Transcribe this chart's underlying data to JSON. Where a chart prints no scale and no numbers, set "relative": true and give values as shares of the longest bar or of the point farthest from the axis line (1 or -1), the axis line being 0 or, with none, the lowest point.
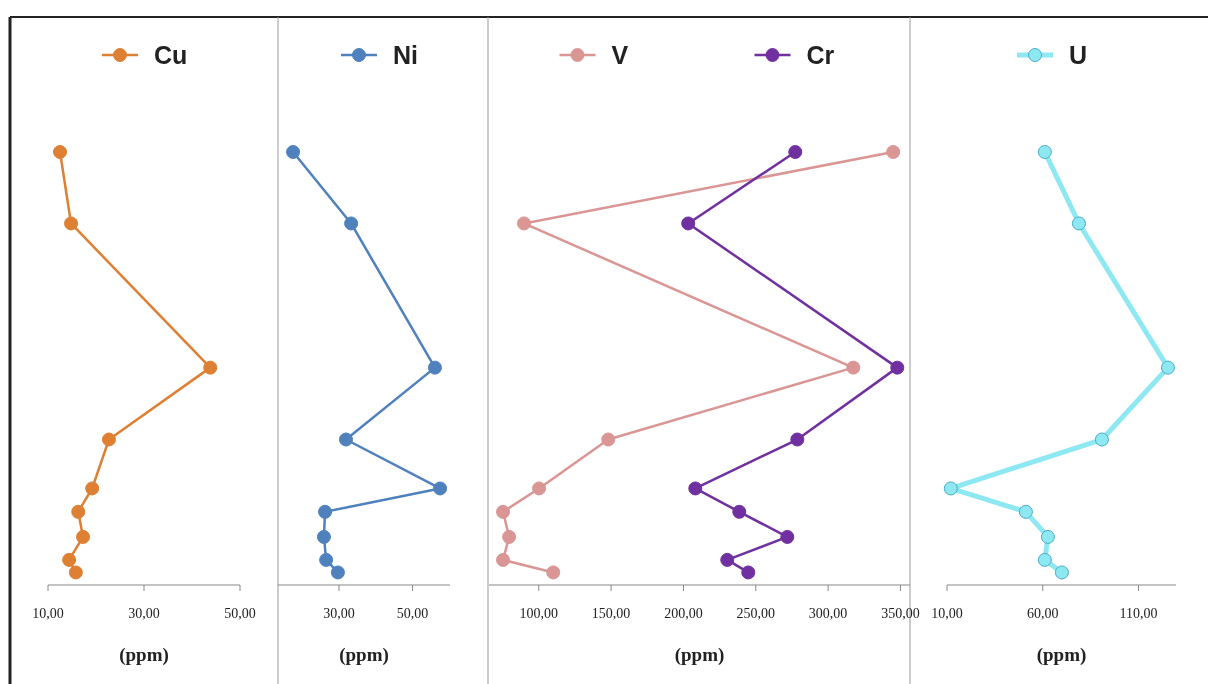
{
  "chart_data": [
    {
      "type": "line",
      "relative": true,
      "xlabel": "(ppm)",
      "xlim": [
        10,
        50
      ],
      "xticks": [
        {
          "value": 10,
          "label": "10,00"
        },
        {
          "value": 30,
          "label": "30,00"
        },
        {
          "value": 50,
          "label": "50,00"
        }
      ],
      "tick_labels": "x",
      "legend": "top",
      "marker": "circle",
      "series": [
        {
          "name": "Cu",
          "color": "#dd8033",
          "x": [
            12.5,
            14.8,
            43.8,
            22.7,
            19.2,
            16.3,
            17.3,
            14.4,
            15.8
          ],
          "values": [
            1,
            0.835,
            0.502,
            0.336,
            0.223,
            0.169,
            0.111,
            0.058,
            0.029
          ]
        }
      ]
    },
    {
      "type": "line",
      "relative": true,
      "xlabel": "(ppm)",
      "xlim": [
        13.4,
        60.2
      ],
      "xticks": [
        {
          "value": 30,
          "label": "30,00"
        },
        {
          "value": 50,
          "label": "50,00"
        }
      ],
      "tick_labels": "x",
      "legend": "top",
      "marker": "circle",
      "series": [
        {
          "name": "Ni",
          "color": "#4f81bd",
          "x": [
            17.5,
            33.3,
            56.1,
            31.9,
            57.5,
            26.2,
            25.9,
            26.5,
            29.7
          ],
          "values": [
            1,
            0.835,
            0.502,
            0.336,
            0.223,
            0.169,
            0.111,
            0.058,
            0.029
          ]
        }
      ]
    },
    {
      "type": "line",
      "relative": true,
      "xlabel": "(ppm)",
      "xlim": [
        65.6,
        356.6
      ],
      "xticks": [
        {
          "value": 100,
          "label": "100,00"
        },
        {
          "value": 150,
          "label": "150,00"
        },
        {
          "value": 200,
          "label": "200,00"
        },
        {
          "value": 250,
          "label": "250,00"
        },
        {
          "value": 300,
          "label": "300,00"
        },
        {
          "value": 350,
          "label": "350,00"
        }
      ],
      "tick_labels": "x",
      "legend": "top",
      "marker": "circle",
      "series": [
        {
          "name": "V",
          "color": "#d99694",
          "x": [
            345,
            89.8,
            317.4,
            148,
            100.2,
            75.3,
            79.5,
            75.3,
            110
          ],
          "values": [
            1,
            0.835,
            0.502,
            0.336,
            0.223,
            0.169,
            0.111,
            0.058,
            0.029
          ]
        },
        {
          "name": "Cr",
          "color": "#7030a0",
          "x": [
            277.3,
            203.3,
            347.8,
            278.7,
            208.2,
            238.6,
            271.8,
            230.3,
            244.8
          ],
          "values": [
            1,
            0.835,
            0.502,
            0.336,
            0.223,
            0.169,
            0.111,
            0.058,
            0.029
          ]
        }
      ]
    },
    {
      "type": "line",
      "relative": true,
      "xlabel": "(ppm)",
      "xlim": [
        10,
        129.6
      ],
      "xticks": [
        {
          "value": 10,
          "label": "10,00"
        },
        {
          "value": 60,
          "label": "60,00"
        },
        {
          "value": 110,
          "label": "110,00"
        }
      ],
      "tick_labels": "x",
      "legend": "top",
      "marker": "circle",
      "series": [
        {
          "name": "U",
          "color": "#8ee8f2",
          "x": [
            61.1,
            78.9,
            125.4,
            90.9,
            12,
            51.2,
            62.7,
            61.1,
            70
          ],
          "values": [
            1,
            0.835,
            0.502,
            0.336,
            0.223,
            0.169,
            0.111,
            0.058,
            0.029
          ]
        }
      ]
    }
  ]
}
